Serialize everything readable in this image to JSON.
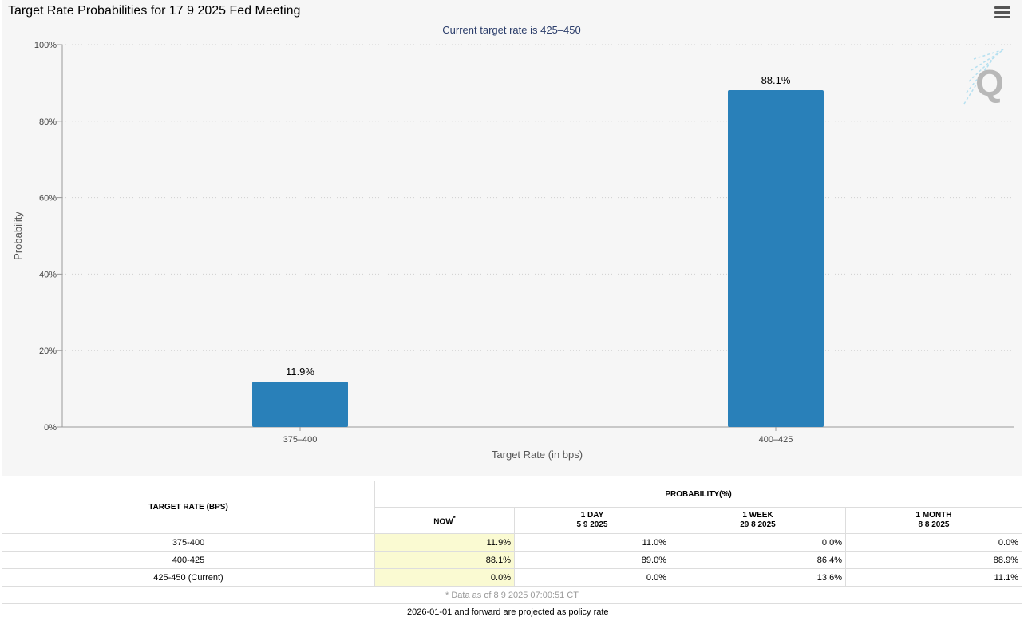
{
  "header": {
    "title": "Target Rate Probabilities for 17 9 2025 Fed Meeting"
  },
  "chart_data": {
    "type": "bar",
    "subtitle": "Current target rate is 425–450",
    "categories": [
      "375–400",
      "400–425"
    ],
    "values": [
      11.9,
      88.1
    ],
    "data_labels": [
      "11.9%",
      "88.1%"
    ],
    "xlabel": "Target Rate (in bps)",
    "ylabel": "Probability",
    "ylim": [
      0,
      100
    ],
    "yticks": [
      "0%",
      "20%",
      "40%",
      "60%",
      "80%",
      "100%"
    ],
    "ytick_values": [
      0,
      20,
      40,
      60,
      80,
      100
    ],
    "grid": true,
    "bar_color": "#2980b9",
    "watermark": "Q"
  },
  "table": {
    "rate_header": "TARGET RATE (BPS)",
    "prob_header": "PROBABILITY(%)",
    "columns": [
      {
        "label": "NOW",
        "sub": "",
        "marker": "*"
      },
      {
        "label": "1 DAY",
        "sub": "5 9 2025",
        "marker": ""
      },
      {
        "label": "1 WEEK",
        "sub": "29 8 2025",
        "marker": ""
      },
      {
        "label": "1 MONTH",
        "sub": "8 8 2025",
        "marker": ""
      }
    ],
    "rows": [
      {
        "rate": "375-400",
        "values": [
          "11.9%",
          "11.0%",
          "0.0%",
          "0.0%"
        ]
      },
      {
        "rate": "400-425",
        "values": [
          "88.1%",
          "89.0%",
          "86.4%",
          "88.9%"
        ]
      },
      {
        "rate": "425-450 (Current)",
        "values": [
          "0.0%",
          "0.0%",
          "13.6%",
          "11.1%"
        ]
      }
    ],
    "footnote": "* Data as of 8 9 2025 07:00:51 CT"
  },
  "bottom_text": "2026-01-01 and forward are projected as policy rate"
}
